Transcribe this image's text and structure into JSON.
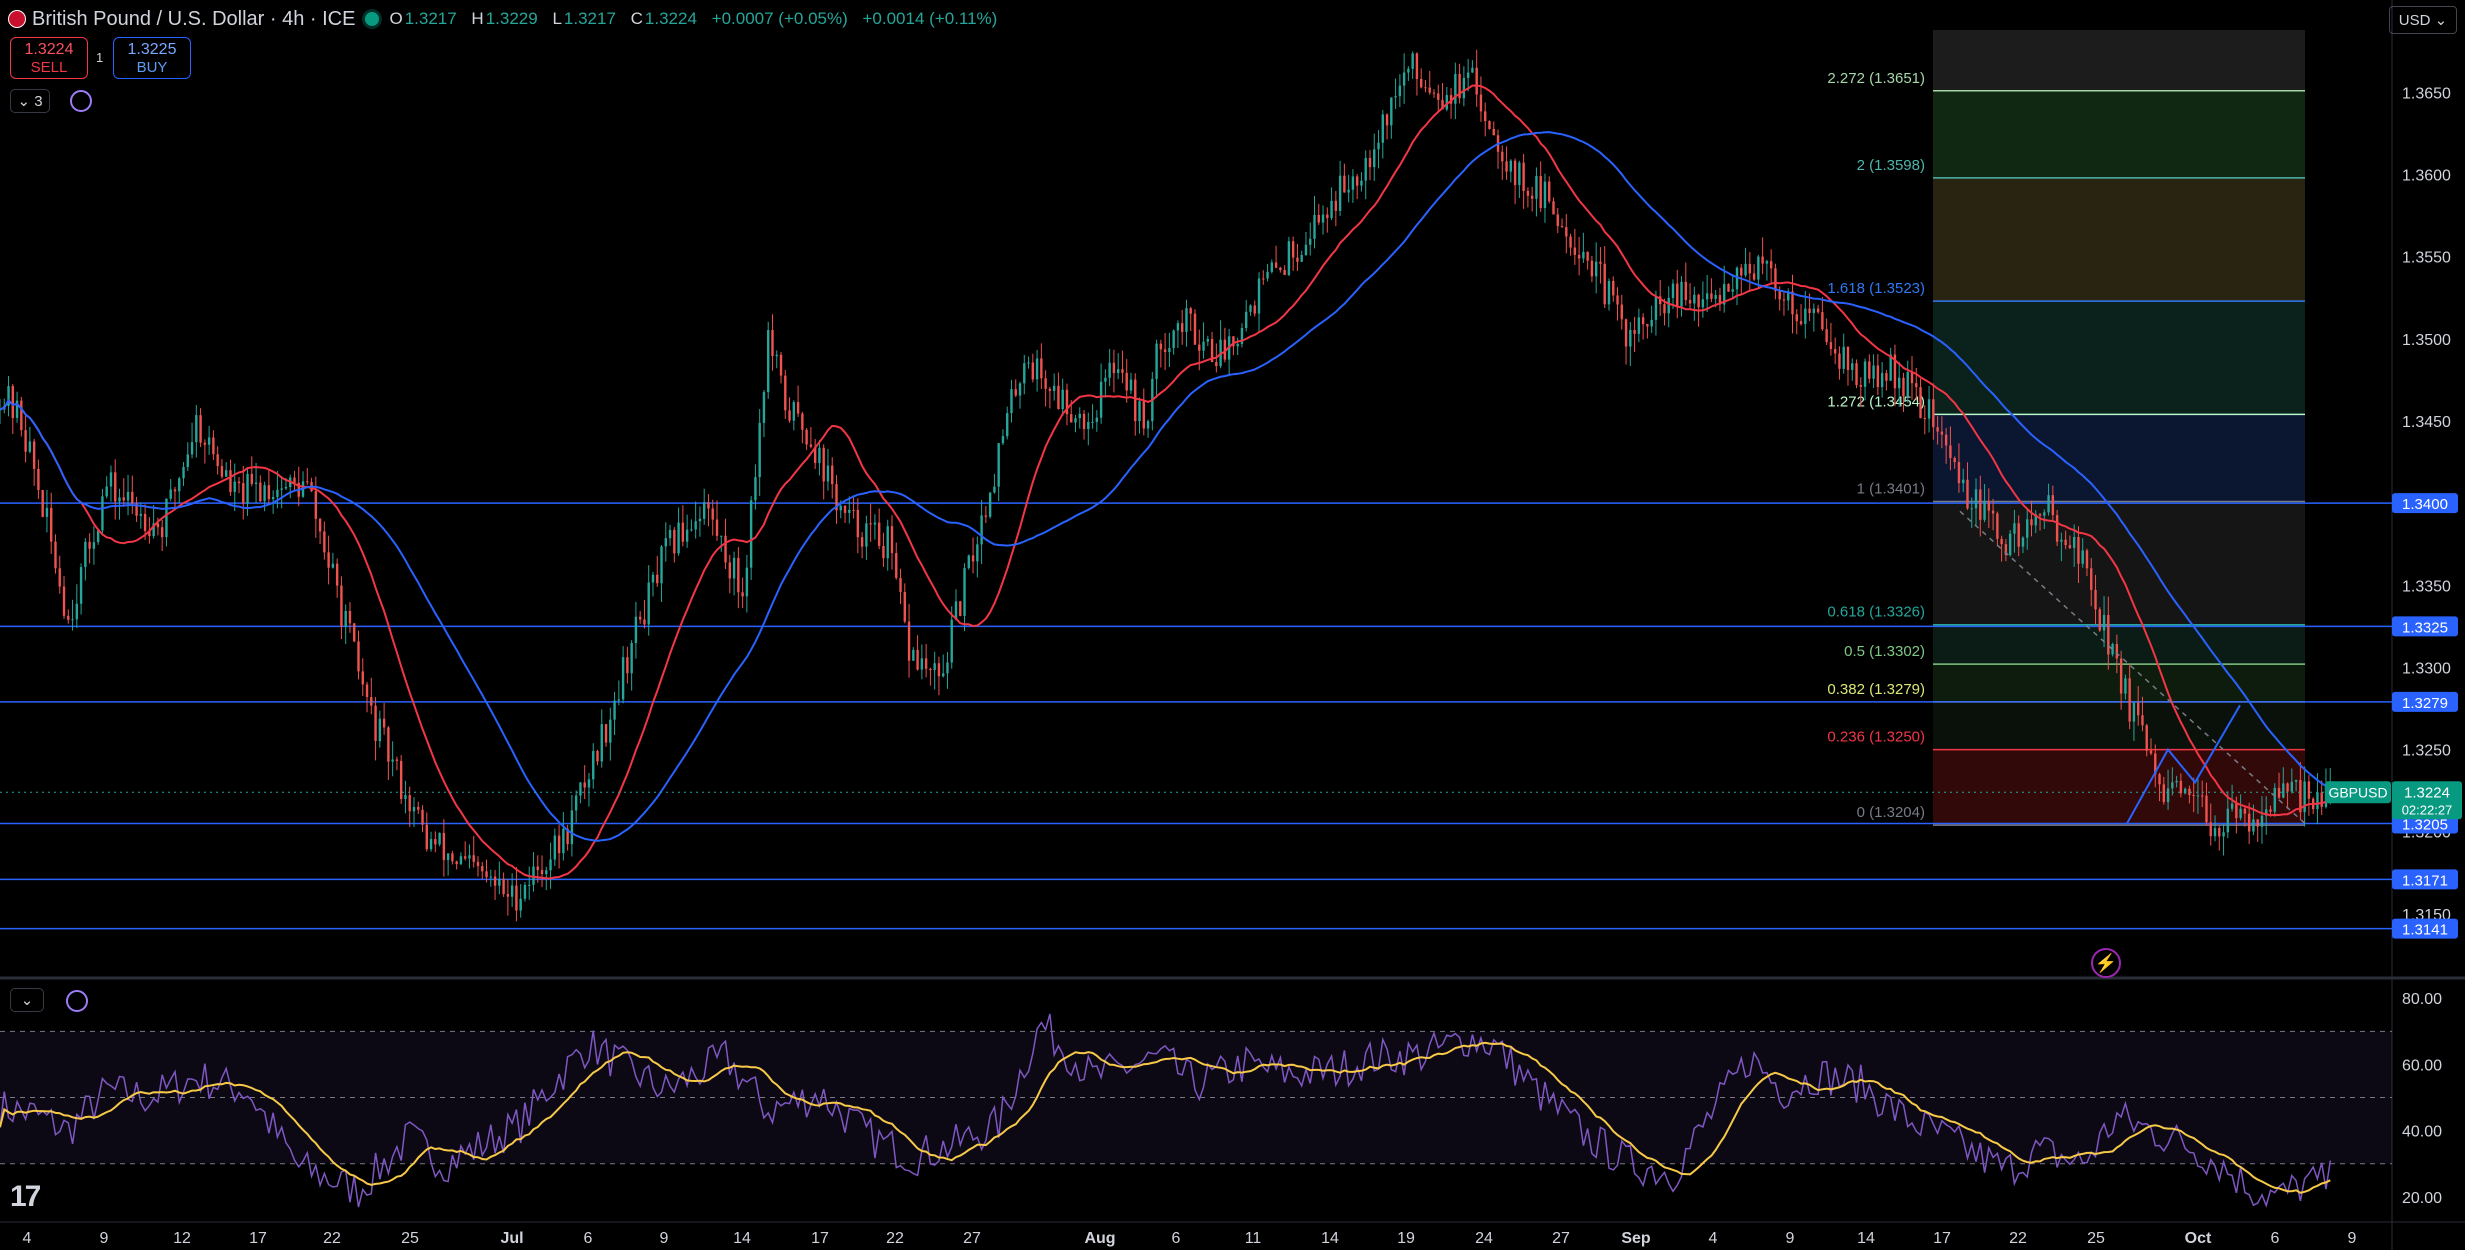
{
  "header": {
    "title": "British Pound / U.S. Dollar · 4h · ICE",
    "ohlc": {
      "o_label": "O",
      "o": "1.3217",
      "h_label": "H",
      "h": "1.3229",
      "l_label": "L",
      "l": "1.3217",
      "c_label": "C",
      "c": "1.3224",
      "change": "+0.0007 (+0.05%)",
      "change2": "+0.0014 (+0.11%)"
    }
  },
  "trade": {
    "sell_price": "1.3224",
    "sell_label": "SELL",
    "spread": "1",
    "buy_price": "1.3225",
    "buy_label": "BUY"
  },
  "indicator_toggle": {
    "count_label": "3"
  },
  "currency_button": "USD",
  "colors": {
    "up": "#26a69a",
    "down": "#ef5350",
    "ma_red": "#f23645",
    "ma_blue": "#2962ff",
    "rsi": "#7e57c2",
    "rsi_ma": "#f7c948",
    "level_line": "#2962ff"
  },
  "icons": [
    "flag-icon",
    "market-open-dot-icon",
    "chevron-down-icon",
    "sync-icon",
    "bolt-icon",
    "tradingview-logo-icon"
  ],
  "symbol_tag": {
    "name": "GBPUSD",
    "price": "1.3224",
    "countdown": "02:22:27"
  },
  "chart_data": [
    {
      "type": "line",
      "title": "British Pound / U.S. Dollar · 4h · ICE",
      "x_tick_labels": [
        "4",
        "9",
        "12",
        "17",
        "22",
        "25",
        "Jul",
        "6",
        "9",
        "14",
        "17",
        "22",
        "27",
        "Aug",
        "6",
        "11",
        "14",
        "19",
        "24",
        "27",
        "Sep",
        "4",
        "9",
        "14",
        "17",
        "22",
        "25",
        "Oct",
        "6",
        "9"
      ],
      "y_tick_labels": [
        "1.3650",
        "1.3600",
        "1.3550",
        "1.3500",
        "1.3450",
        "1.3400",
        "1.3350",
        "1.3300",
        "1.3250",
        "1.3200",
        "1.3150"
      ],
      "ylim": [
        1.3128,
        1.3688
      ],
      "price_anchors": {
        "x_index": [
          0,
          5,
          8,
          16,
          25,
          38,
          46,
          55,
          62,
          72,
          87,
          100,
          120,
          132,
          142,
          148,
          156,
          165,
          174,
          180,
          184,
          190,
          198,
          208,
          213,
          220,
          228,
          240,
          248,
          255,
          262,
          268,
          272,
          278,
          286,
          295,
          305,
          320,
          330,
          338,
          345,
          355,
          362,
          372,
          382,
          392,
          400,
          408,
          414,
          420,
          427,
          435,
          444,
          452,
          460,
          470,
          480,
          488,
          496,
          506,
          512,
          520,
          528,
          534,
          538,
          542,
          546
        ],
        "close": [
          1.3468,
          1.345,
          1.342,
          1.333,
          1.341,
          1.3385,
          1.345,
          1.3405,
          1.341,
          1.341,
          1.327,
          1.3195,
          1.316,
          1.3195,
          1.3265,
          1.3315,
          1.337,
          1.34,
          1.3345,
          1.35,
          1.346,
          1.344,
          1.339,
          1.3375,
          1.331,
          1.329,
          1.337,
          1.349,
          1.3465,
          1.345,
          1.349,
          1.3445,
          1.35,
          1.351,
          1.349,
          1.353,
          1.356,
          1.361,
          1.3665,
          1.365,
          1.3655,
          1.36,
          1.3585,
          1.355,
          1.35,
          1.3525,
          1.352,
          1.3545,
          1.354,
          1.352,
          1.351,
          1.3475,
          1.348,
          1.3455,
          1.341,
          1.3375,
          1.3395,
          1.3365,
          1.33,
          1.3225,
          1.3218,
          1.3205,
          1.321,
          1.322,
          1.3222,
          1.3224,
          1.3224
        ]
      },
      "series": [
        {
          "name": "GBPUSD",
          "values_ref": "price_anchors.close"
        }
      ],
      "horizontal_levels": [
        1.34,
        1.3325,
        1.3279,
        1.3205,
        1.3171,
        1.3141
      ],
      "level_tags": [
        {
          "label": "1.3400",
          "value": 1.34
        },
        {
          "label": "1.3325",
          "value": 1.3325
        },
        {
          "label": "1.3279",
          "value": 1.3279
        },
        {
          "label": "1.3205",
          "value": 1.3205
        },
        {
          "label": "1.3171",
          "value": 1.3171
        },
        {
          "label": "1.3141",
          "value": 1.3141
        }
      ],
      "fib_levels": [
        {
          "label": "2.272 (1.3651)",
          "value": 1.3651,
          "color": "#a5d6a7",
          "fill": "rgba(56,142,60,0.28)"
        },
        {
          "label": "2 (1.3598)",
          "value": 1.3598,
          "color": "#4db6ac",
          "fill": "rgba(90,80,40,0.45)"
        },
        {
          "label": "1.618 (1.3523)",
          "value": 1.3523,
          "color": "#3179f5",
          "fill": "rgba(38,130,110,0.25)"
        },
        {
          "label": "1.272 (1.3454)",
          "value": 1.3454,
          "color": "#b9f6ca",
          "fill": "rgba(20,40,90,0.55)"
        },
        {
          "label": "1 (1.3401)",
          "value": 1.3401,
          "color": "#787b86",
          "fill": "rgba(60,60,60,0.35)"
        },
        {
          "label": "0.618 (1.3326)",
          "value": 1.3326,
          "color": "#26a69a",
          "fill": "rgba(30,80,60,0.35)"
        },
        {
          "label": "0.5 (1.3302)",
          "value": 1.3302,
          "color": "#81c784",
          "fill": "rgba(40,80,40,0.35)"
        },
        {
          "label": "0.382 (1.3279)",
          "value": 1.3279,
          "color": "#dce775",
          "fill": "rgba(30,50,30,0.35)"
        },
        {
          "label": "0.236 (1.3250)",
          "value": 1.325,
          "color": "#f23645",
          "fill": "rgba(110,20,20,0.45)"
        },
        {
          "label": "0 (1.3204)",
          "value": 1.3204,
          "color": "#787b86",
          "fill": null
        }
      ],
      "fib_top_value": 1.3688
    },
    {
      "type": "line",
      "title": "",
      "y_tick_labels": [
        "80.00",
        "60.00",
        "40.00",
        "20.00"
      ],
      "ylim": [
        13,
        84
      ],
      "bands": [
        70,
        50,
        30
      ],
      "rsi_anchors": {
        "x_index": [
          0,
          8,
          16,
          25,
          35,
          46,
          58,
          70,
          84,
          96,
          104,
          112,
          122,
          130,
          138,
          148,
          156,
          170,
          180,
          192,
          204,
          214,
          224,
          234,
          244,
          256,
          266,
          272,
          280,
          292,
          302,
          312,
          322,
          334,
          344,
          350,
          360,
          372,
          382,
          392,
          402,
          410,
          418,
          426,
          436,
          446,
          456,
          464,
          470,
          478,
          488,
          496,
          504,
          512,
          520,
          528,
          534,
          540,
          546
        ],
        "value": [
          47,
          45,
          40,
          52,
          50,
          56,
          52,
          29,
          22,
          38,
          30,
          35,
          42,
          55,
          66,
          58,
          52,
          62,
          46,
          51,
          38,
          32,
          36,
          42,
          72,
          56,
          60,
          62,
          54,
          60,
          57,
          58,
          62,
          63,
          68,
          66,
          52,
          38,
          30,
          27,
          47,
          62,
          52,
          57,
          54,
          44,
          38,
          32,
          28,
          34,
          30,
          44,
          40,
          36,
          30,
          22,
          20,
          24,
          25
        ]
      },
      "series": [
        {
          "name": "RSI",
          "values_ref": "rsi_anchors.value"
        }
      ]
    }
  ]
}
